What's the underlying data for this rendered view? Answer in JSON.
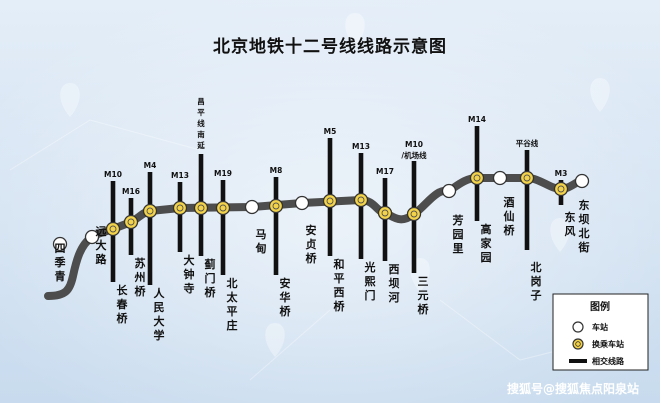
{
  "title": "北京地铁十二号线线路示意图",
  "colors": {
    "line": "#4d4d4d",
    "transfer_fill": "#f3d34a",
    "station_fill": "#ffffff",
    "intersect": "#111111"
  },
  "stations": [
    {
      "name": "四季青",
      "transfer": false,
      "line": ""
    },
    {
      "name": "远大路",
      "transfer": false,
      "line": ""
    },
    {
      "name": "长春桥",
      "transfer": true,
      "line": "M10"
    },
    {
      "name": "苏州桥",
      "transfer": true,
      "line": "M16"
    },
    {
      "name": "人民大学",
      "transfer": true,
      "line": "M4"
    },
    {
      "name": "大钟寺",
      "transfer": true,
      "line": "M13"
    },
    {
      "name": "蓟门桥",
      "transfer": true,
      "line": "昌平线南延"
    },
    {
      "name": "北太平庄",
      "transfer": true,
      "line": "M19"
    },
    {
      "name": "马甸",
      "transfer": false,
      "line": ""
    },
    {
      "name": "安华桥",
      "transfer": true,
      "line": "M8"
    },
    {
      "name": "安贞桥",
      "transfer": false,
      "line": ""
    },
    {
      "name": "和平西桥",
      "transfer": true,
      "line": "M5"
    },
    {
      "name": "光熙门",
      "transfer": true,
      "line": "M13"
    },
    {
      "name": "西坝河",
      "transfer": true,
      "line": "M17"
    },
    {
      "name": "三元桥",
      "transfer": true,
      "line": "M10 /机场线"
    },
    {
      "name": "芳园里",
      "transfer": false,
      "line": ""
    },
    {
      "name": "高家园",
      "transfer": true,
      "line": "M14"
    },
    {
      "name": "酒仙桥",
      "transfer": false,
      "line": ""
    },
    {
      "name": "北岗子",
      "transfer": true,
      "line": "平谷线"
    },
    {
      "name": "东风",
      "transfer": true,
      "line": "M3"
    },
    {
      "name": "东坝北街",
      "transfer": false,
      "line": ""
    }
  ],
  "legend": {
    "title": "图例",
    "items": [
      {
        "type": "station",
        "label": "车站"
      },
      {
        "type": "transfer",
        "label": "换乘车站"
      },
      {
        "type": "line",
        "label": "相交线路"
      }
    ]
  },
  "watermark": "搜狐号@搜狐焦点阳泉站"
}
